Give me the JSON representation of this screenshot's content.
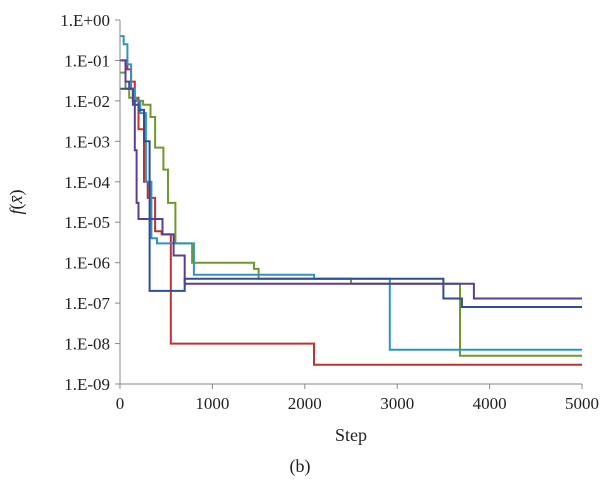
{
  "caption": "(b)",
  "chart_data": {
    "type": "line",
    "xlabel": "Step",
    "ylabel": "f(x̄)",
    "ylabel_parts": {
      "f": "f",
      "open": "(",
      "var": "x̄",
      "close": ")"
    },
    "xlim": [
      0,
      5000
    ],
    "ylim_log10": [
      -9,
      0
    ],
    "y_scale": "log",
    "grid": false,
    "legend": "none",
    "x_ticks": [
      0,
      1000,
      2000,
      3000,
      4000,
      5000
    ],
    "x_tick_labels": [
      "0",
      "1000",
      "2000",
      "3000",
      "4000",
      "5000"
    ],
    "y_ticks": [
      1,
      0.1,
      0.01,
      0.001,
      0.0001,
      1e-05,
      1e-06,
      1e-07,
      1e-08,
      1e-09
    ],
    "y_tick_labels": [
      "1.E+00",
      "1.E-01",
      "1.E-02",
      "1.E-03",
      "1.E-04",
      "1.E-05",
      "1.E-06",
      "1.E-07",
      "1.E-08",
      "1.E-09"
    ],
    "series": [
      {
        "color": "#c0312f",
        "x": [
          0,
          80,
          120,
          160,
          200,
          260,
          300,
          380,
          450,
          550,
          700,
          1500,
          2100,
          2500,
          5000
        ],
        "y": [
          0.1,
          0.06,
          0.03,
          0.012,
          0.002,
          0.0001,
          4e-05,
          6e-06,
          5e-06,
          1e-08,
          1e-08,
          1e-08,
          3e-09,
          3e-09,
          3e-09
        ]
      },
      {
        "color": "#6f9a2b",
        "x": [
          0,
          60,
          100,
          180,
          250,
          330,
          380,
          470,
          520,
          600,
          780,
          1200,
          1450,
          1500,
          2500,
          3600,
          3680,
          5000
        ],
        "y": [
          0.05,
          0.02,
          0.012,
          0.01,
          0.008,
          0.004,
          0.0007,
          0.0002,
          3e-05,
          3e-06,
          1e-06,
          1e-06,
          7e-07,
          4e-07,
          3e-07,
          3e-07,
          5e-09,
          5e-09
        ]
      },
      {
        "color": "#2f95c0",
        "x": [
          0,
          40,
          80,
          120,
          160,
          220,
          280,
          340,
          400,
          600,
          800,
          1000,
          2100,
          2600,
          2920,
          3500,
          5000
        ],
        "y": [
          0.4,
          0.25,
          0.08,
          0.02,
          0.01,
          0.005,
          0.0001,
          4e-06,
          3e-06,
          3e-06,
          5e-07,
          5e-07,
          4e-07,
          4e-07,
          7e-09,
          7e-09,
          7e-09
        ]
      },
      {
        "color": "#2f4f8f",
        "x": [
          0,
          80,
          140,
          200,
          260,
          320,
          400,
          650,
          700,
          1200,
          2000,
          3000,
          3500,
          3600,
          3700,
          5000
        ],
        "y": [
          0.02,
          0.02,
          0.008,
          0.006,
          0.001,
          2e-07,
          2e-07,
          2e-07,
          4e-07,
          4e-07,
          4e-07,
          4e-07,
          1.3e-07,
          1.3e-07,
          8e-08,
          8e-08
        ]
      },
      {
        "color": "#5b3f8f",
        "x": [
          0,
          60,
          100,
          140,
          160,
          180,
          200,
          240,
          360,
          460,
          580,
          700,
          1100,
          3000,
          3600,
          3800,
          3830,
          5000
        ],
        "y": [
          0.1,
          0.03,
          0.02,
          0.01,
          0.0006,
          3e-05,
          1.2e-05,
          1.2e-05,
          1.2e-05,
          5e-06,
          1.5e-06,
          3e-07,
          3e-07,
          3e-07,
          3e-07,
          3e-07,
          1.3e-07,
          1.3e-07
        ]
      }
    ]
  }
}
